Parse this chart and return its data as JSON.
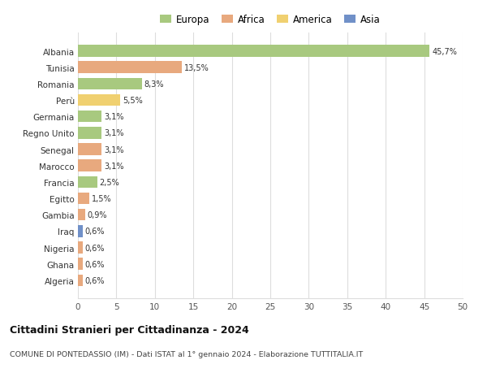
{
  "countries": [
    "Albania",
    "Tunisia",
    "Romania",
    "Perù",
    "Germania",
    "Regno Unito",
    "Senegal",
    "Marocco",
    "Francia",
    "Egitto",
    "Gambia",
    "Iraq",
    "Nigeria",
    "Ghana",
    "Algeria"
  ],
  "values": [
    45.7,
    13.5,
    8.3,
    5.5,
    3.1,
    3.1,
    3.1,
    3.1,
    2.5,
    1.5,
    0.9,
    0.6,
    0.6,
    0.6,
    0.6
  ],
  "labels": [
    "45,7%",
    "13,5%",
    "8,3%",
    "5,5%",
    "3,1%",
    "3,1%",
    "3,1%",
    "3,1%",
    "2,5%",
    "1,5%",
    "0,9%",
    "0,6%",
    "0,6%",
    "0,6%",
    "0,6%"
  ],
  "continents": [
    "Europa",
    "Africa",
    "Europa",
    "America",
    "Europa",
    "Europa",
    "Africa",
    "Africa",
    "Europa",
    "Africa",
    "Africa",
    "Asia",
    "Africa",
    "Africa",
    "Africa"
  ],
  "continent_colors": {
    "Europa": "#a8c97f",
    "Africa": "#e8a97e",
    "America": "#f0d070",
    "Asia": "#7090c8"
  },
  "legend_labels": [
    "Europa",
    "Africa",
    "America",
    "Asia"
  ],
  "legend_colors": [
    "#a8c97f",
    "#e8a97e",
    "#f0d070",
    "#7090c8"
  ],
  "xlim": [
    0,
    50
  ],
  "xticks": [
    0,
    5,
    10,
    15,
    20,
    25,
    30,
    35,
    40,
    45,
    50
  ],
  "title": "Cittadini Stranieri per Cittadinanza - 2024",
  "subtitle": "COMUNE DI PONTEDASSIO (IM) - Dati ISTAT al 1° gennaio 2024 - Elaborazione TUTTITALIA.IT",
  "bg_color": "#ffffff",
  "grid_color": "#dddddd",
  "bar_height": 0.72,
  "figsize": [
    6.0,
    4.6
  ],
  "dpi": 100
}
